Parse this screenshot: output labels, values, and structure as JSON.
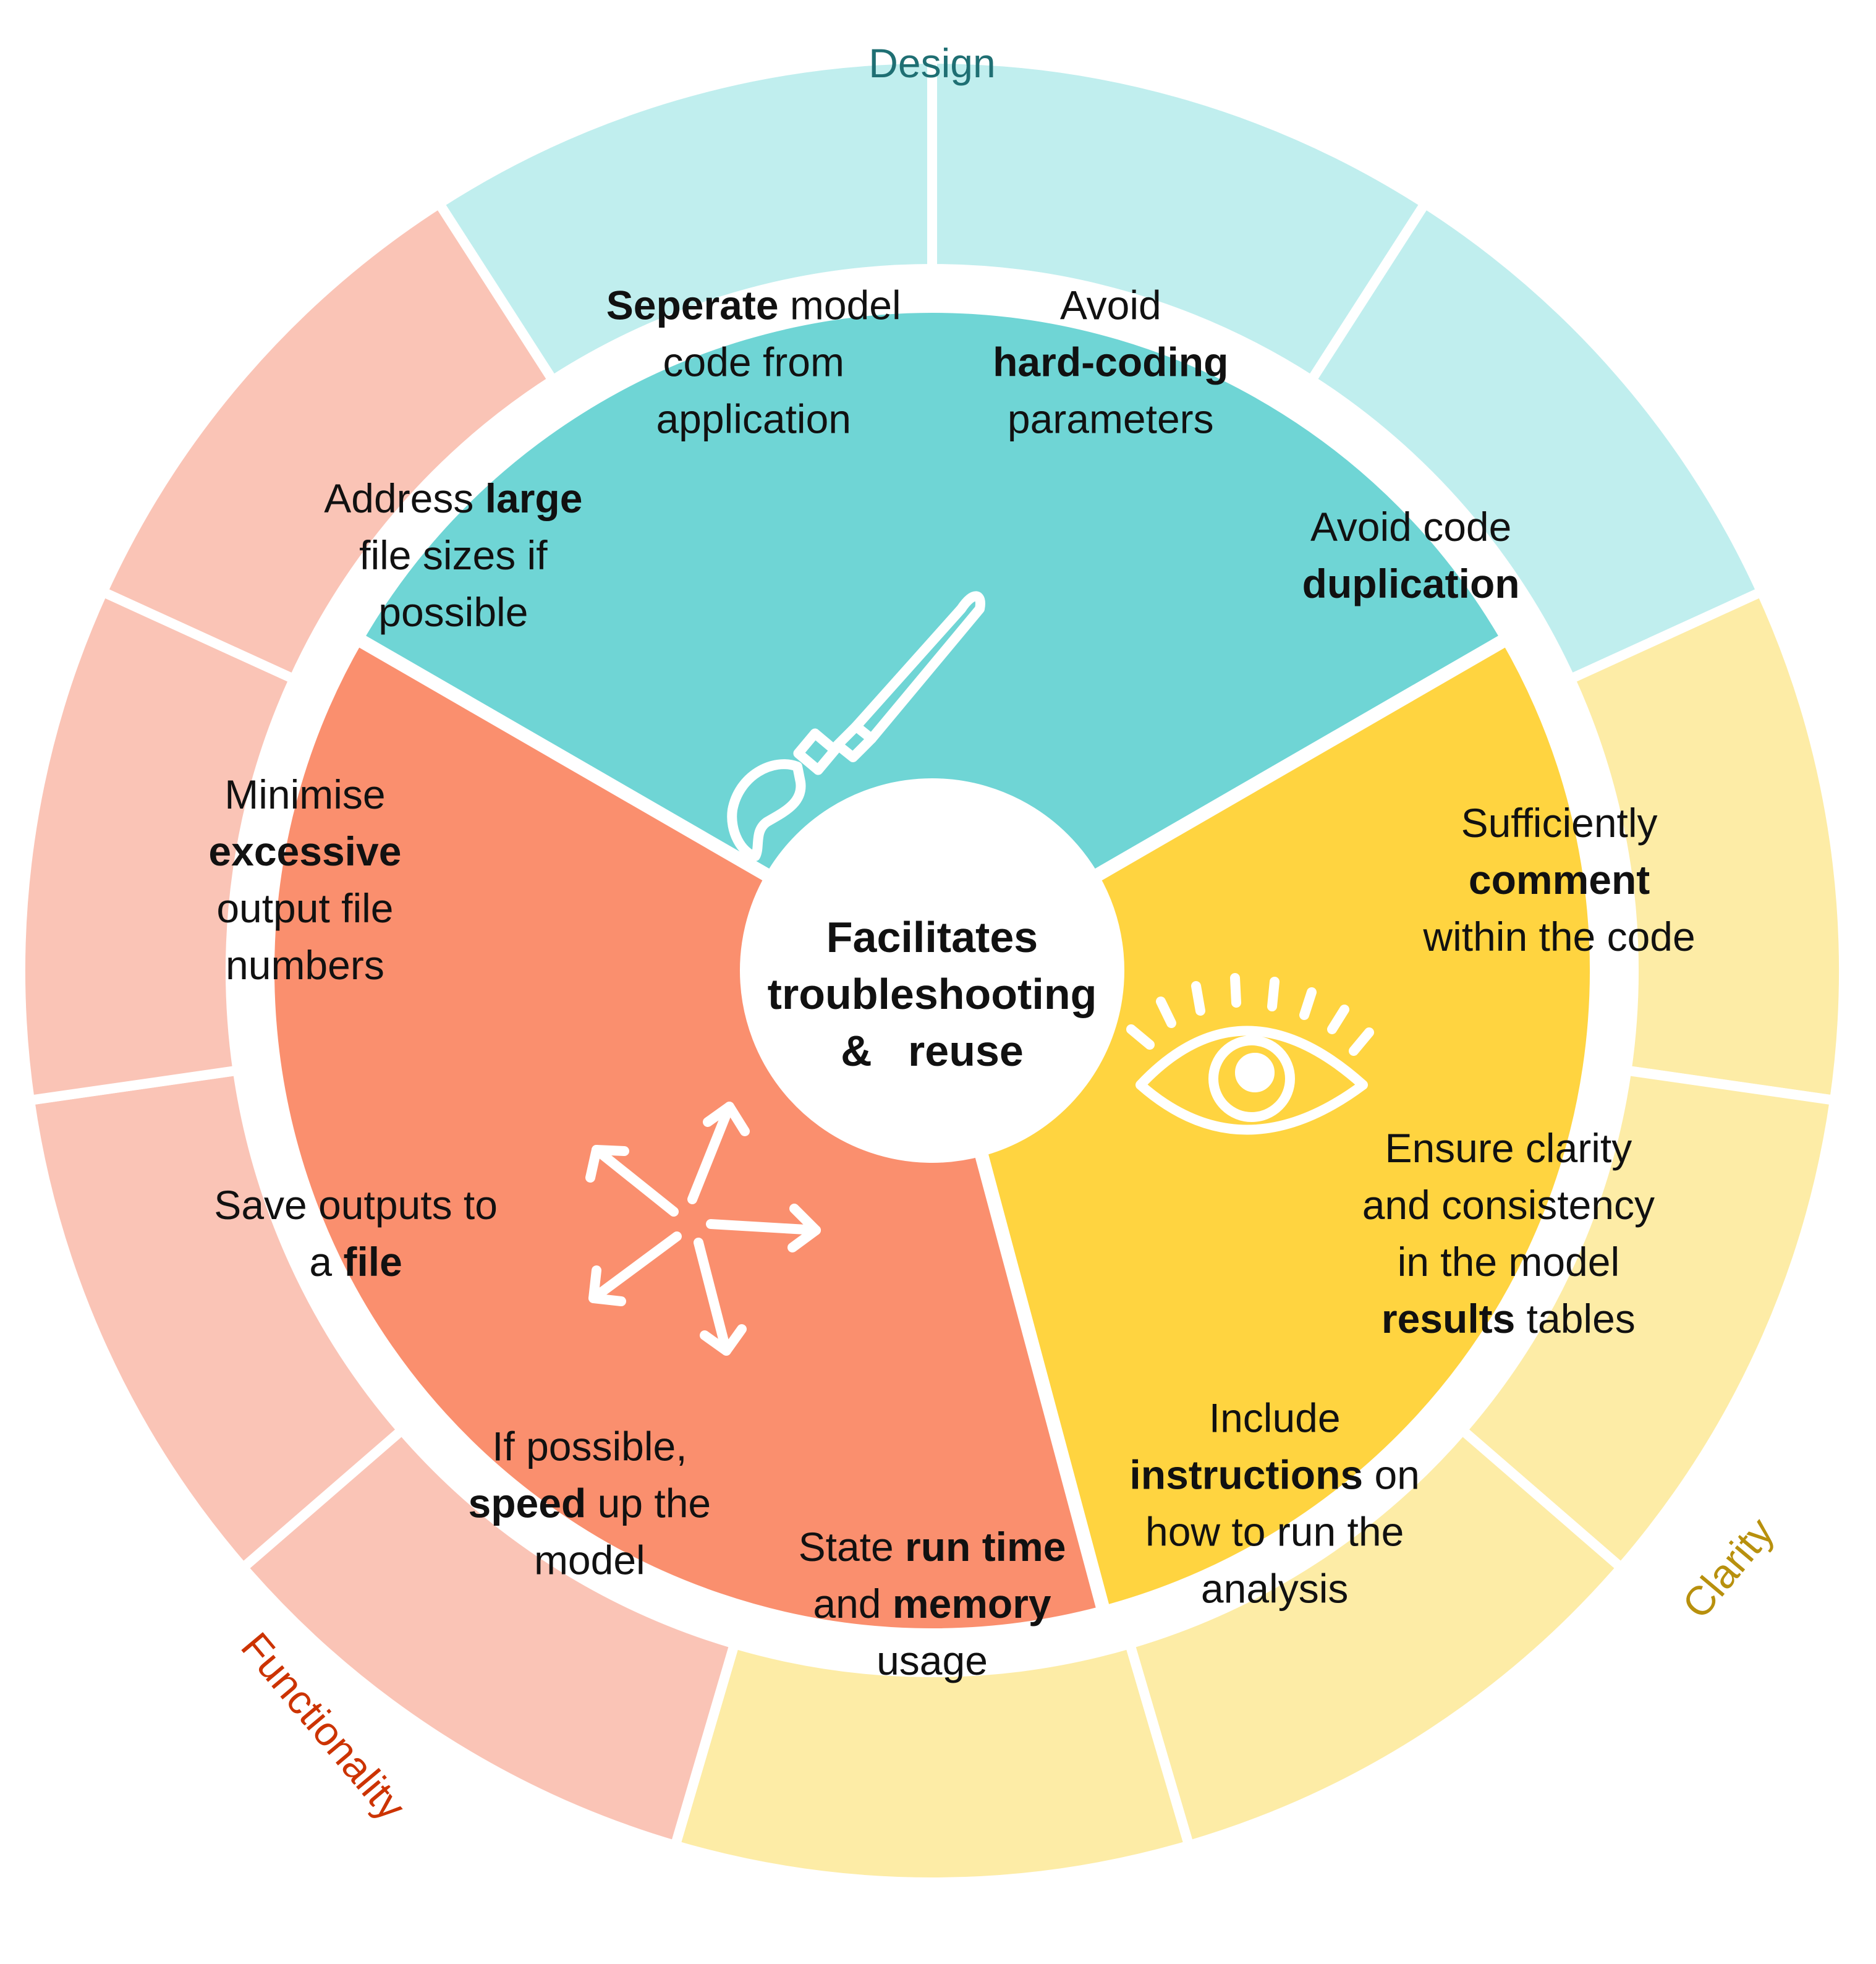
{
  "center": {
    "lines": [
      "Facilitates",
      "troubleshooting",
      "&   reuse"
    ]
  },
  "categories": [
    {
      "key": "design",
      "label": "Design",
      "label_color": "#1f6f73",
      "inner_color": "#6fd5d5",
      "outer_color": "#c0eeee",
      "icon": "paintbrush-icon"
    },
    {
      "key": "clarity",
      "label": "Clarity",
      "label_color": "#b8900d",
      "inner_color": "#ffd440",
      "outer_color": "#fdeca6",
      "icon": "eye-icon"
    },
    {
      "key": "functionality",
      "label": "Functionality",
      "label_color": "#cc3300",
      "inner_color": "#fa8f6e",
      "outer_color": "#fac4b6",
      "icon": "arrows-icon"
    }
  ],
  "segments": [
    {
      "category": "design",
      "lines": [
        [
          [
            "Avoid",
            false
          ]
        ],
        [
          [
            "hard-coding",
            true
          ]
        ],
        [
          [
            "parameters",
            false
          ]
        ]
      ]
    },
    {
      "category": "design",
      "lines": [
        [
          [
            "Avoid  code",
            false
          ]
        ],
        [
          [
            "duplication",
            true
          ]
        ]
      ]
    },
    {
      "category": "clarity",
      "lines": [
        [
          [
            "Sufficiently",
            false
          ]
        ],
        [
          [
            "comment",
            true
          ]
        ],
        [
          [
            "within  the  code",
            false
          ]
        ]
      ]
    },
    {
      "category": "clarity",
      "lines": [
        [
          [
            "Ensure  clarity",
            false
          ]
        ],
        [
          [
            "and  consistency",
            false
          ]
        ],
        [
          [
            "in  the  model",
            false
          ]
        ],
        [
          [
            "results",
            true
          ],
          [
            "  tables",
            false
          ]
        ]
      ]
    },
    {
      "category": "clarity",
      "lines": [
        [
          [
            "Include",
            false
          ]
        ],
        [
          [
            "instructions",
            true
          ],
          [
            "  on",
            false
          ]
        ],
        [
          [
            "how  to  run  the",
            false
          ]
        ],
        [
          [
            "analysis",
            false
          ]
        ]
      ]
    },
    {
      "category": "clarity",
      "lines": [
        [
          [
            "State  ",
            false
          ],
          [
            "run  time",
            true
          ]
        ],
        [
          [
            "and  ",
            false
          ],
          [
            "memory",
            true
          ]
        ],
        [
          [
            "usage",
            false
          ]
        ]
      ]
    },
    {
      "category": "functionality",
      "lines": [
        [
          [
            "If  possible,",
            false
          ]
        ],
        [
          [
            "speed",
            true
          ],
          [
            "  up  the",
            false
          ]
        ],
        [
          [
            "model",
            false
          ]
        ]
      ]
    },
    {
      "category": "functionality",
      "lines": [
        [
          [
            "Save  outputs  to",
            false
          ]
        ],
        [
          [
            "a  ",
            false
          ],
          [
            "file",
            true
          ]
        ]
      ]
    },
    {
      "category": "functionality",
      "lines": [
        [
          [
            "Minimise",
            false
          ]
        ],
        [
          [
            "excessive",
            true
          ]
        ],
        [
          [
            "output  file",
            false
          ]
        ],
        [
          [
            "numbers",
            false
          ]
        ]
      ]
    },
    {
      "category": "functionality",
      "lines": [
        [
          [
            "Address  ",
            false
          ],
          [
            "large",
            true
          ]
        ],
        [
          [
            "file  sizes  if",
            false
          ]
        ],
        [
          [
            "possible",
            false
          ]
        ]
      ]
    },
    {
      "category": "design",
      "lines": [
        [
          [
            "Seperate",
            true
          ],
          [
            "  model",
            false
          ]
        ],
        [
          [
            "code  from",
            false
          ]
        ],
        [
          [
            "application",
            false
          ]
        ]
      ]
    }
  ]
}
